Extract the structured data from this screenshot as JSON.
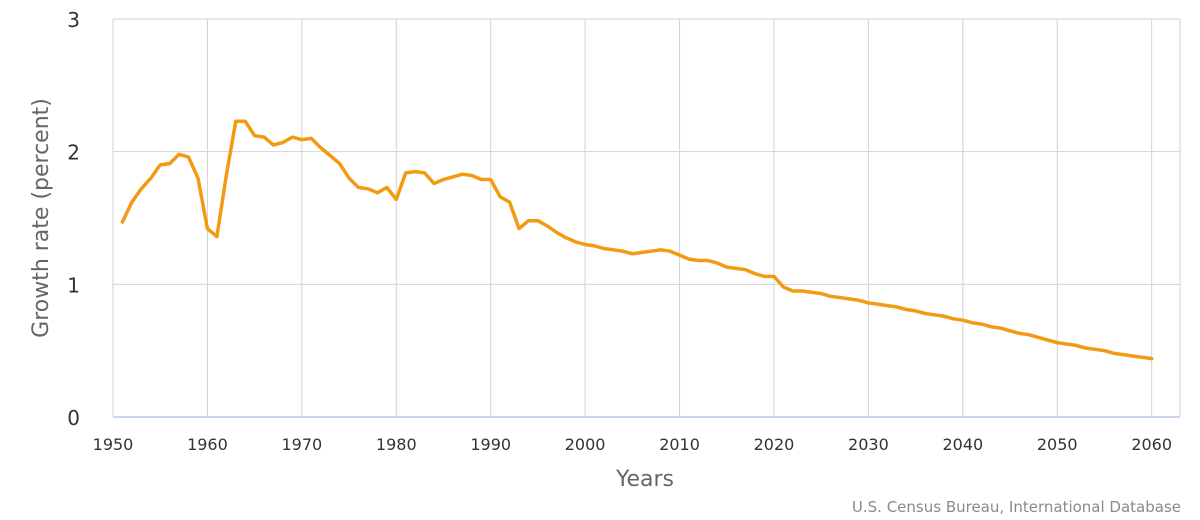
{
  "chart_data": {
    "type": "line",
    "title": "",
    "xlabel": "Years",
    "ylabel": "Growth rate (percent)",
    "credit": "U.S. Census Bureau, International Database",
    "xlim": [
      1950,
      2063
    ],
    "ylim": [
      0,
      3
    ],
    "xticks": [
      1950,
      1960,
      1970,
      1980,
      1990,
      2000,
      2010,
      2020,
      2030,
      2040,
      2050,
      2060
    ],
    "yticks": [
      0,
      1,
      2,
      3
    ],
    "grid": true,
    "colors": {
      "line": "#f29b12",
      "grid": "#d3d3d3",
      "baseline": "#c8d6ee"
    },
    "x": [
      1951,
      1952,
      1953,
      1954,
      1955,
      1956,
      1957,
      1958,
      1959,
      1960,
      1961,
      1962,
      1963,
      1964,
      1965,
      1966,
      1967,
      1968,
      1969,
      1970,
      1971,
      1972,
      1973,
      1974,
      1975,
      1976,
      1977,
      1978,
      1979,
      1980,
      1981,
      1982,
      1983,
      1984,
      1985,
      1986,
      1987,
      1988,
      1989,
      1990,
      1991,
      1992,
      1993,
      1994,
      1995,
      1996,
      1997,
      1998,
      1999,
      2000,
      2001,
      2002,
      2003,
      2004,
      2005,
      2006,
      2007,
      2008,
      2009,
      2010,
      2011,
      2012,
      2013,
      2014,
      2015,
      2016,
      2017,
      2018,
      2019,
      2020,
      2021,
      2022,
      2023,
      2024,
      2025,
      2026,
      2027,
      2028,
      2029,
      2030,
      2031,
      2032,
      2033,
      2034,
      2035,
      2036,
      2037,
      2038,
      2039,
      2040,
      2041,
      2042,
      2043,
      2044,
      2045,
      2046,
      2047,
      2048,
      2049,
      2050,
      2051,
      2052,
      2053,
      2054,
      2055,
      2056,
      2057,
      2058,
      2059,
      2060
    ],
    "series": [
      {
        "values": [
          1.47,
          1.62,
          1.72,
          1.8,
          1.9,
          1.91,
          1.98,
          1.96,
          1.8,
          1.42,
          1.36,
          1.82,
          2.23,
          2.23,
          2.12,
          2.11,
          2.05,
          2.07,
          2.11,
          2.09,
          2.1,
          2.03,
          1.97,
          1.91,
          1.8,
          1.73,
          1.72,
          1.69,
          1.73,
          1.64,
          1.84,
          1.85,
          1.84,
          1.76,
          1.79,
          1.81,
          1.83,
          1.82,
          1.79,
          1.79,
          1.66,
          1.62,
          1.42,
          1.48,
          1.48,
          1.44,
          1.39,
          1.35,
          1.32,
          1.3,
          1.29,
          1.27,
          1.26,
          1.25,
          1.23,
          1.24,
          1.25,
          1.26,
          1.25,
          1.22,
          1.19,
          1.18,
          1.18,
          1.16,
          1.13,
          1.12,
          1.11,
          1.08,
          1.06,
          1.06,
          0.98,
          0.95,
          0.95,
          0.94,
          0.93,
          0.91,
          0.9,
          0.89,
          0.88,
          0.86,
          0.85,
          0.84,
          0.83,
          0.81,
          0.8,
          0.78,
          0.77,
          0.76,
          0.74,
          0.73,
          0.71,
          0.7,
          0.68,
          0.67,
          0.65,
          0.63,
          0.62,
          0.6,
          0.58,
          0.56,
          0.55,
          0.54,
          0.52,
          0.51,
          0.5,
          0.48,
          0.47,
          0.46,
          0.45,
          0.44
        ]
      }
    ]
  }
}
